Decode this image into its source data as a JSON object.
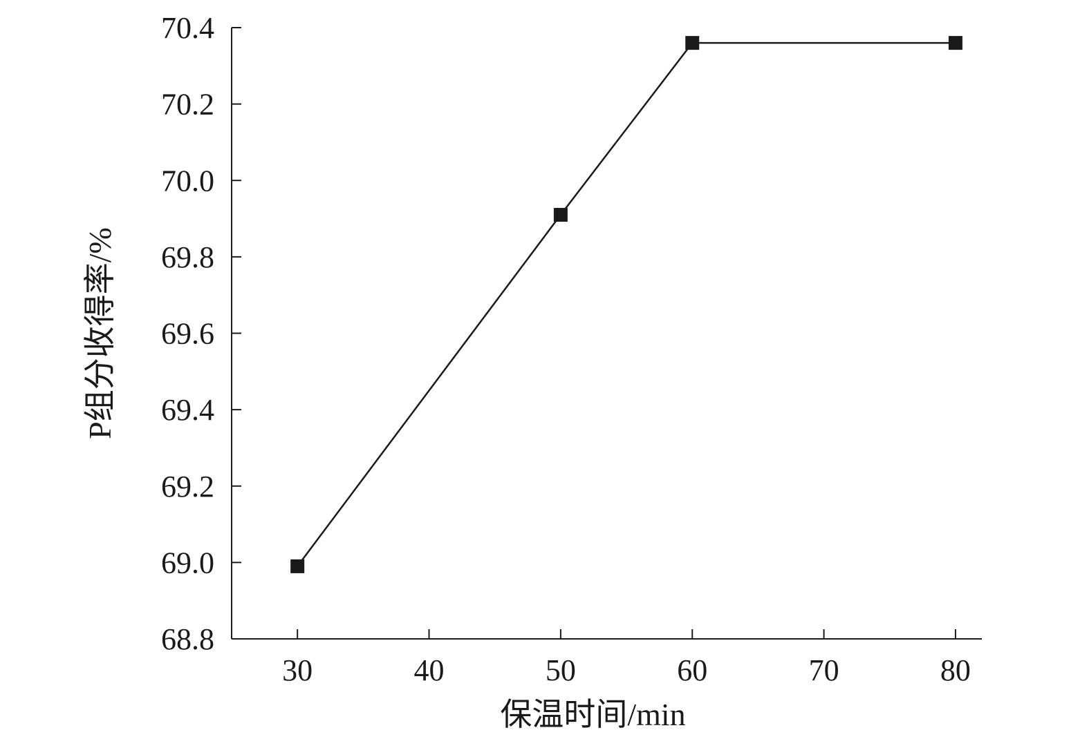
{
  "chart_data": {
    "type": "line",
    "xlabel": "保温时间/min",
    "ylabel": "P组分收得率/%",
    "xlim": [
      25,
      82
    ],
    "ylim": [
      68.8,
      70.4
    ],
    "x_ticks": [
      30,
      40,
      50,
      60,
      70,
      80
    ],
    "y_ticks": [
      68.8,
      69.0,
      69.2,
      69.4,
      69.6,
      69.8,
      70.0,
      70.2,
      70.4
    ],
    "x_tick_labels": [
      "30",
      "40",
      "50",
      "60",
      "70",
      "80"
    ],
    "y_tick_labels": [
      "68.8",
      "69.0",
      "69.2",
      "69.4",
      "69.6",
      "69.8",
      "70.0",
      "70.2",
      "70.4"
    ],
    "grid": false,
    "marker": "square",
    "series": [
      {
        "x": [
          30,
          50,
          60,
          80
        ],
        "values": [
          68.99,
          69.91,
          70.36,
          70.36
        ]
      }
    ],
    "colors": {
      "line": "#1a1a1a",
      "marker": "#1a1a1a"
    }
  }
}
